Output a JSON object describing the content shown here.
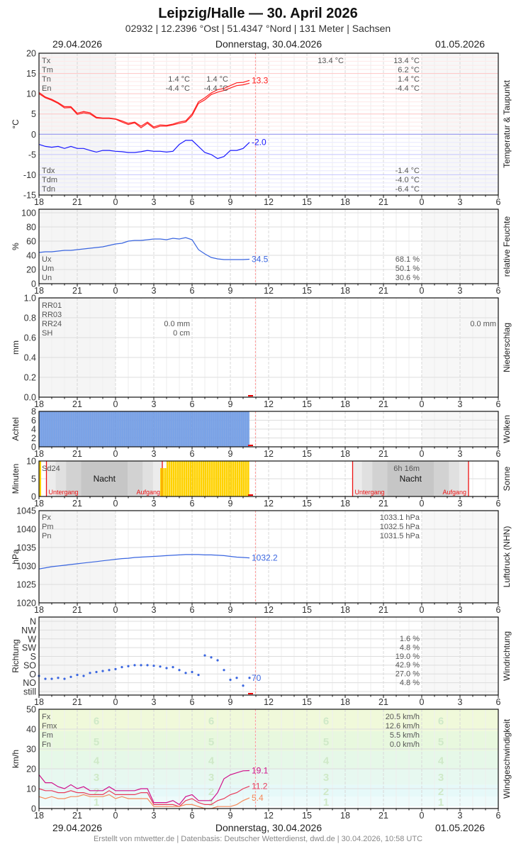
{
  "header": {
    "title": "Leipzig/Halle  —  30. April 2026",
    "subtitle": "02932  |  12.2396 °Ost  |  51.4347 °Nord  |  131 Meter  |  Sachsen",
    "date_left": "29.04.2026",
    "date_center": "Donnerstag, 30.04.2026",
    "date_right": "01.05.2026"
  },
  "footer": {
    "date_left": "29.04.2026",
    "date_center": "Donnerstag, 30.04.2026",
    "date_right": "01.05.2026",
    "credit": "Erstellt von mtwetter.de | Datenbasis: Deutscher Wetterdienst, dwd.de | 30.04.2026, 10:58 UTC"
  },
  "x_ticks": [
    "18",
    "21",
    "0",
    "3",
    "6",
    "9",
    "12",
    "15",
    "18",
    "21",
    "0",
    "3",
    "6"
  ],
  "now_time": "30.04 10:58",
  "times": [
    "18:00",
    "18:30",
    "19:00",
    "19:30",
    "20:00",
    "20:30",
    "21:00",
    "21:30",
    "22:00",
    "22:30",
    "23:00",
    "23:30",
    "00:00",
    "00:30",
    "01:00",
    "01:30",
    "02:00",
    "02:30",
    "03:00",
    "03:30",
    "04:00",
    "04:30",
    "05:00",
    "05:30",
    "06:00",
    "06:30",
    "07:00",
    "07:30",
    "08:00",
    "08:30",
    "09:00",
    "09:30",
    "10:00",
    "10:30"
  ],
  "colors": {
    "temperature": "#ff2020",
    "dewpoint": "#1a1aff",
    "humidity": "#3a66e0",
    "pressure": "#3a66e0",
    "wind_dir": "#3a66e0",
    "clouds": "#7ea6e8",
    "sun": "#ffd200",
    "fx": "#d0108a",
    "fm": "#e83a5a",
    "fn": "#f58a5a",
    "now": "#ff9a9a"
  },
  "chart_data": [
    {
      "type": "line",
      "key": "temperature",
      "side_label": "Temperatur & Taupunkt",
      "ylabel": "°C",
      "ylim": [
        -15,
        20
      ],
      "y_ticks": [
        "20",
        "15",
        "10",
        "5",
        "0",
        "-5",
        "-10",
        "-15"
      ],
      "legend_top": [
        "Tx",
        "Tm",
        "Tn",
        "En"
      ],
      "legend_bottom": [
        "Tdx",
        "Tdm",
        "Tdn"
      ],
      "annotations": {
        "night1_tn": "1.4 °C",
        "night1_en": "-4.4 °C",
        "night2_tn": "1.4 °C",
        "night2_en": "-4.4 °C",
        "day_tx": "13.4 °C",
        "summary_top": [
          "13.4 °C",
          "6.2 °C",
          "1.4 °C",
          "-4.4 °C"
        ],
        "summary_bottom": [
          "-1.4 °C",
          "-4.0 °C",
          "-6.4 °C"
        ]
      },
      "series": [
        {
          "values": [
            10.3,
            9.2,
            8.6,
            7.8,
            6.8,
            6.8,
            5.2,
            5.6,
            5.3,
            4.2,
            4.0,
            4.0,
            3.8,
            3.3,
            2.7,
            3.0,
            2.0,
            3.0,
            1.8,
            2.3,
            2.2,
            2.5,
            3.0,
            3.3,
            5.0,
            8.0,
            9.0,
            10.2,
            11.0,
            11.3,
            12.0,
            12.7,
            12.8,
            13.3
          ],
          "color_key": "temperature",
          "end_label": "13.3"
        },
        {
          "values": [
            10.0,
            9.0,
            8.4,
            7.6,
            6.5,
            6.6,
            4.9,
            5.3,
            5.0,
            4.0,
            3.9,
            3.9,
            3.7,
            3.0,
            2.4,
            2.8,
            1.6,
            2.7,
            1.5,
            2.0,
            2.0,
            2.3,
            2.7,
            3.0,
            4.6,
            7.6,
            8.5,
            9.8,
            10.4,
            10.8,
            11.4,
            12.0,
            12.2,
            12.6
          ],
          "color_key": "temperature"
        },
        {
          "values": [
            -2.5,
            -3,
            -3.2,
            -3,
            -3.5,
            -3,
            -3.5,
            -3.5,
            -4,
            -4.4,
            -4,
            -4,
            -4.2,
            -4.3,
            -4.5,
            -4.5,
            -4.3,
            -4,
            -4.2,
            -4.2,
            -4.4,
            -4.2,
            -2.5,
            -1.5,
            -1.5,
            -3,
            -4.5,
            -5,
            -6,
            -5.5,
            -4,
            -4,
            -3.5,
            -2.0
          ],
          "color_key": "dewpoint",
          "end_label": "-2.0"
        }
      ]
    },
    {
      "type": "line",
      "key": "humidity",
      "side_label": "relative Feuchte",
      "ylabel": "%",
      "ylim": [
        0,
        100
      ],
      "y_ticks": [
        "100",
        "80",
        "60",
        "40",
        "20",
        "0"
      ],
      "legend": [
        "Ux",
        "Um",
        "Un"
      ],
      "summary": [
        "68.1 %",
        "50.1 %",
        "30.6 %"
      ],
      "series": [
        {
          "values": [
            44,
            45,
            45,
            46,
            47,
            47,
            48,
            49,
            50,
            51,
            52,
            54,
            56,
            57,
            60,
            61,
            61,
            62,
            63,
            63,
            62,
            64,
            63,
            65,
            62,
            48,
            42,
            37,
            35,
            34,
            34,
            34,
            34,
            34.5
          ],
          "color_key": "humidity",
          "end_label": "34.5"
        }
      ]
    },
    {
      "type": "bar",
      "key": "precipitation",
      "side_label": "Niederschlag",
      "ylabel": "mm",
      "ylim": [
        0,
        1.0
      ],
      "y_ticks": [
        "1.0",
        "0.8",
        "0.6",
        "0.4",
        "0.2",
        "0.0"
      ],
      "legend": [
        "RR01",
        "RR03",
        "RR24",
        "SH"
      ],
      "night_rr24": "0.0 mm",
      "night_sh": "0 cm",
      "day_rr24": "0.0 mm",
      "values": []
    },
    {
      "type": "bar",
      "key": "clouds",
      "side_label": "Wolken",
      "ylabel": "Achtel",
      "ylim": [
        0,
        8
      ],
      "y_ticks": [
        "8",
        "6",
        "4",
        "2",
        "0"
      ],
      "values": [
        8,
        8,
        8,
        8,
        8,
        8,
        8,
        8,
        8,
        8,
        8,
        8,
        8,
        8,
        8,
        8,
        8,
        8,
        8,
        8,
        8,
        8,
        8,
        8,
        8,
        8,
        8,
        8,
        8,
        8,
        8,
        8,
        8,
        8
      ]
    },
    {
      "type": "bar",
      "key": "sunshine",
      "side_label": "Sonne",
      "ylabel": "Minuten",
      "ylim": [
        0,
        10
      ],
      "y_ticks": [
        "10",
        "5",
        "0"
      ],
      "legend": "Sd24",
      "day_total": "6h 16m",
      "night_label": "Nacht",
      "sunset_label": "Untergang",
      "sunrise_label": "Aufgang",
      "nights": [
        [
          "29.04 18:35",
          "30.04 03:40"
        ],
        [
          "30.04 18:35",
          "01.05 03:40"
        ]
      ],
      "values": [
        0,
        0,
        0,
        0,
        0,
        0,
        0,
        0,
        0,
        0,
        0,
        0,
        0,
        0,
        0,
        0,
        0,
        0,
        0,
        8,
        10,
        10,
        10,
        10,
        10,
        10,
        10,
        10,
        10,
        10,
        10,
        10,
        10,
        10
      ]
    },
    {
      "type": "line",
      "key": "pressure",
      "side_label": "Luftdruck (NHN)",
      "ylabel": "hPa",
      "ylim": [
        1020,
        1045
      ],
      "y_ticks": [
        "1045",
        "1040",
        "1035",
        "1030",
        "1025",
        "1020"
      ],
      "legend": [
        "Px",
        "Pm",
        "Pn"
      ],
      "summary": [
        "1033.1 hPa",
        "1032.5 hPa",
        "1031.5 hPa"
      ],
      "series": [
        {
          "values": [
            1029.2,
            1029.5,
            1029.8,
            1030,
            1030.2,
            1030.4,
            1030.6,
            1030.8,
            1031,
            1031.2,
            1031.4,
            1031.6,
            1031.8,
            1032,
            1032.1,
            1032.3,
            1032.4,
            1032.5,
            1032.6,
            1032.7,
            1032.8,
            1032.9,
            1033,
            1033.1,
            1033.1,
            1033.1,
            1033,
            1033,
            1032.9,
            1032.8,
            1032.6,
            1032.4,
            1032.3,
            1032.2
          ],
          "color_key": "pressure",
          "end_label": "1032.2"
        }
      ]
    },
    {
      "type": "scatter",
      "key": "wind_direction",
      "side_label": "Windrichtung",
      "ylabel": "Richtung",
      "ylim": [
        0,
        360
      ],
      "y_ticks": [
        "N",
        "NW",
        "W",
        "SW",
        "S",
        "SO",
        "O",
        "NO",
        "still"
      ],
      "summary": [
        "1.6 %",
        "4.8 %",
        "19.0 %",
        "42.9 %",
        "27.0 %",
        "4.8 %"
      ],
      "series": [
        {
          "values": [
            80,
            65,
            65,
            70,
            65,
            75,
            85,
            80,
            95,
            100,
            105,
            110,
            115,
            125,
            130,
            135,
            135,
            135,
            132,
            128,
            120,
            125,
            110,
            95,
            100,
            85,
            185,
            175,
            160,
            110,
            60,
            70,
            30,
            70
          ],
          "color_key": "wind_dir",
          "end_label": "70"
        }
      ]
    },
    {
      "type": "line",
      "key": "wind_speed",
      "side_label": "Windgeschwindigkeit",
      "ylabel": "km/h",
      "ylim": [
        0,
        50
      ],
      "y_ticks": [
        "50",
        "40",
        "30",
        "20",
        "10",
        "0"
      ],
      "legend": [
        "Fx",
        "Fmx",
        "Fm",
        "Fn"
      ],
      "summary": [
        "20.5 km/h",
        "12.6 km/h",
        "5.5 km/h",
        "0.0 km/h"
      ],
      "beaufort": [
        {
          "label": "1",
          "from": 1,
          "to": 6,
          "color": "#eefbfb"
        },
        {
          "label": "2",
          "from": 6,
          "to": 12,
          "color": "#e6f9f9"
        },
        {
          "label": "3",
          "from": 12,
          "to": 20,
          "color": "#e7f8f0"
        },
        {
          "label": "4",
          "from": 20,
          "to": 29,
          "color": "#e6f8e8"
        },
        {
          "label": "5",
          "from": 29,
          "to": 39,
          "color": "#e8f8de"
        },
        {
          "label": "6",
          "from": 39,
          "to": 50,
          "color": "#f0f9da"
        }
      ],
      "series": [
        {
          "values": [
            17,
            13,
            13,
            11,
            10,
            12,
            10,
            11,
            9,
            9,
            9,
            11,
            9,
            9,
            9,
            9,
            10,
            10,
            3,
            3,
            3,
            4,
            2,
            6,
            7,
            4,
            4,
            4,
            8,
            15,
            17,
            18,
            19,
            19.1
          ],
          "color_key": "fx",
          "end_label": "19.1"
        },
        {
          "values": [
            10,
            9,
            9,
            8,
            8,
            9,
            8,
            8,
            7,
            7,
            7,
            9,
            7,
            7,
            7,
            7,
            8,
            8,
            2,
            2,
            2,
            2,
            1,
            4,
            5,
            3,
            2,
            2,
            4,
            5,
            7,
            8,
            10,
            11.2
          ],
          "color_key": "fm",
          "end_label": "11.2"
        },
        {
          "values": [
            6,
            5,
            6,
            5,
            5,
            6,
            6,
            7,
            6,
            6,
            6,
            7,
            5,
            6,
            5,
            5,
            5,
            5,
            1,
            1,
            1,
            1,
            1,
            2,
            2,
            1,
            0,
            0,
            1,
            1,
            1,
            2,
            4,
            5.4
          ],
          "color_key": "fn",
          "end_label": "5.4"
        }
      ]
    }
  ]
}
